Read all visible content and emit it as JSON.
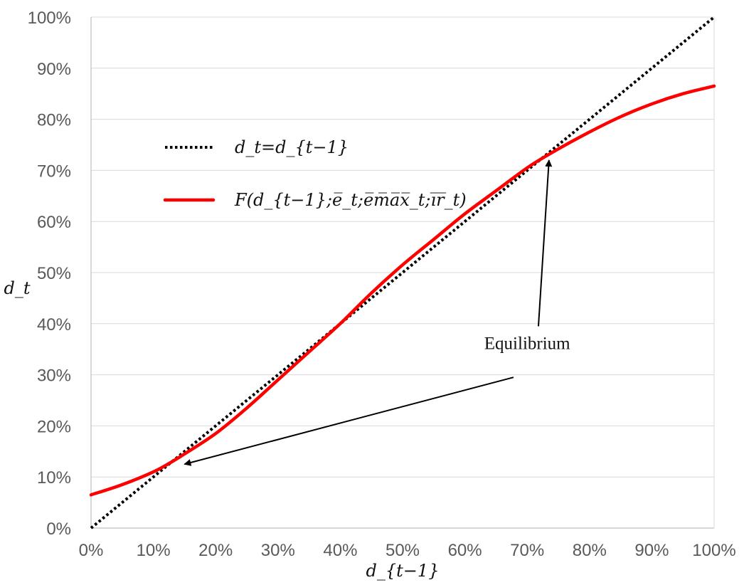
{
  "chart_data": {
    "type": "line",
    "x_tick_labels": [
      "0%",
      "10%",
      "20%",
      "30%",
      "40%",
      "50%",
      "60%",
      "70%",
      "80%",
      "90%",
      "100%"
    ],
    "y_tick_labels": [
      "0%",
      "10%",
      "20%",
      "30%",
      "40%",
      "50%",
      "60%",
      "70%",
      "80%",
      "90%",
      "100%"
    ],
    "xlabel": "d_{t−1}",
    "ylabel": "d_t",
    "xlim": [
      0,
      1
    ],
    "ylim": [
      0,
      1
    ],
    "grid": "horizontal",
    "legend_position": "upper-left",
    "series": [
      {
        "name": "d_t=d_{t−1}",
        "style": "dotted",
        "color": "#000000",
        "x": [
          0.0,
          1.0
        ],
        "y": [
          0.0,
          1.0
        ]
      },
      {
        "name": "F(d_{t−1};e̅_t;e̅m̅a̅x̅_t;i̅r̅_t)",
        "style": "solid",
        "color": "#ff0000",
        "x": [
          0.0,
          0.05,
          0.1,
          0.13,
          0.15,
          0.2,
          0.25,
          0.3,
          0.35,
          0.4,
          0.45,
          0.5,
          0.55,
          0.6,
          0.65,
          0.7,
          0.74,
          0.8,
          0.85,
          0.9,
          0.95,
          1.0
        ],
        "y": [
          0.065,
          0.085,
          0.11,
          0.13,
          0.145,
          0.185,
          0.235,
          0.29,
          0.345,
          0.4,
          0.46,
          0.515,
          0.565,
          0.615,
          0.66,
          0.705,
          0.735,
          0.775,
          0.805,
          0.83,
          0.85,
          0.865
        ]
      }
    ],
    "annotations": [
      {
        "text": "Equilibrium",
        "label_at": [
          0.7,
          0.35
        ],
        "arrows": [
          {
            "from": [
              0.678,
              0.295
            ],
            "to": [
              0.15,
              0.125
            ]
          },
          {
            "from": [
              0.718,
              0.395
            ],
            "to": [
              0.735,
              0.72
            ]
          }
        ]
      }
    ]
  }
}
